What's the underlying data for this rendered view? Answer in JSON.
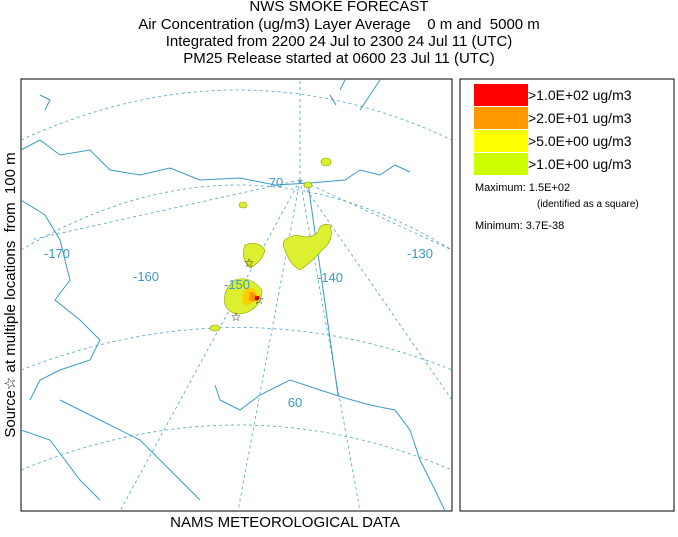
{
  "header": {
    "title": "NWS SMOKE FORECAST",
    "lines": [
      "Air Concentration (ug/m3) Layer Average    0 m and  5000 m",
      "Integrated from 2200 24 Jul to 2300 24 Jul 11 (UTC)",
      "PM25 Release started at 0600 23 Jul 11 (UTC)"
    ]
  },
  "side_label": "Source☆ at multiple locations  from  100 m",
  "footer": "NAMS METEOROLOGICAL DATA",
  "map": {
    "longitude_labels": [
      "-170",
      "-160",
      "-150",
      "-140",
      "-130"
    ],
    "latitude_labels": [
      "70",
      "60"
    ]
  },
  "legend": {
    "entries": [
      {
        "label": ">1.0E+02 ug/m3",
        "color": "#ff0000"
      },
      {
        "label": ">2.0E+01 ug/m3",
        "color": "#ff9900"
      },
      {
        "label": ">5.0E+00 ug/m3",
        "color": "#ffff00"
      },
      {
        "label": ">1.0E+00 ug/m3",
        "color": "#ccff00"
      }
    ],
    "maximum": "Maximum: 1.5E+02",
    "max_note": "(identified as a square)",
    "minimum": "Minimum: 3.7E-38"
  }
}
